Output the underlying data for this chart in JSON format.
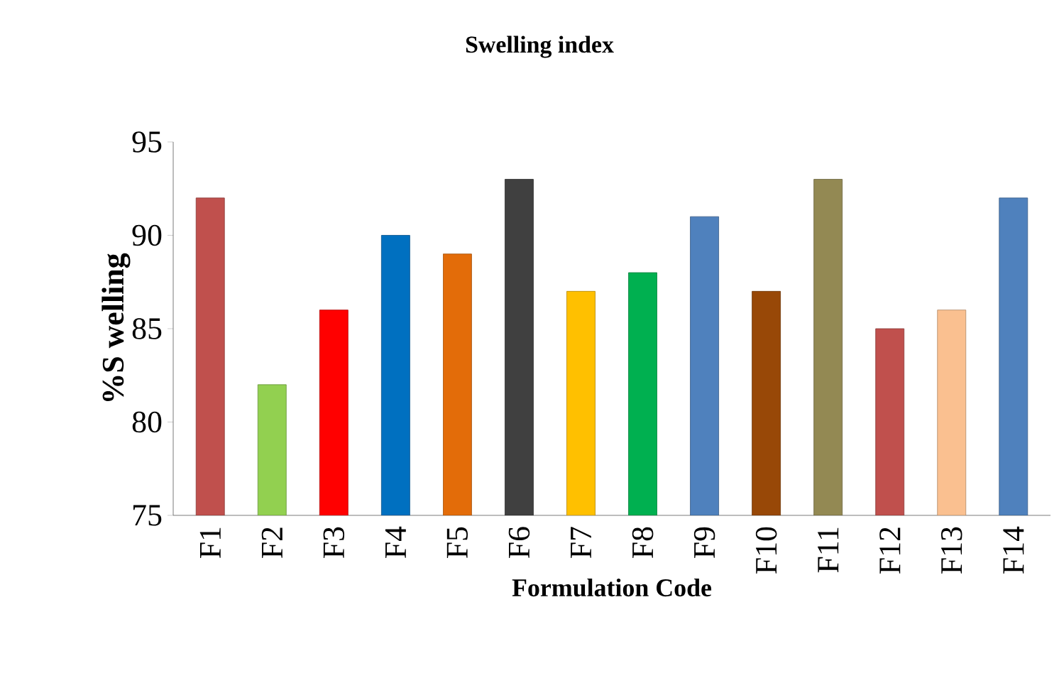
{
  "chart_data": {
    "type": "bar",
    "title": "Swelling index",
    "xlabel": "Formulation Code",
    "ylabel": "%S welling",
    "categories": [
      "F1",
      "F2",
      "F3",
      "F4",
      "F5",
      "F6",
      "F7",
      "F8",
      "F9",
      "F10",
      "F11",
      "F12",
      "F13",
      "F14"
    ],
    "values": [
      92,
      82,
      86,
      90,
      89,
      93,
      87,
      88,
      91,
      87,
      93,
      85,
      86,
      92
    ],
    "colors": [
      "#c0504d",
      "#92d050",
      "#ff0000",
      "#0070c0",
      "#e36c09",
      "#404040",
      "#ffc000",
      "#00b050",
      "#4f81bd",
      "#984807",
      "#938953",
      "#c0504d",
      "#fac090",
      "#4f81bd"
    ],
    "ylim": [
      75,
      95
    ],
    "yticks": [
      75,
      80,
      85,
      90,
      95
    ]
  }
}
